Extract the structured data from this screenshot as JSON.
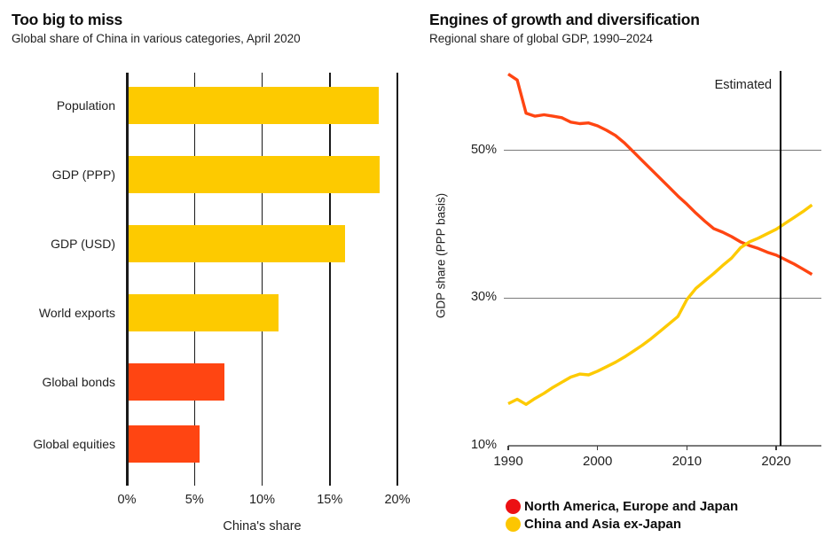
{
  "charts": {
    "left": {
      "title": "Too big to miss",
      "subtitle": "Global share of China in various categories, April 2020"
    },
    "right": {
      "title": "Engines of growth and diversification",
      "subtitle": "Regional share of global GDP, 1990–2024"
    }
  },
  "colors": {
    "bar_yellow": "#FDCA00",
    "bar_red": "#FF4512",
    "line_red": "#FF4512",
    "line_yellow": "#FDCA00",
    "legend_red": "#EC1013",
    "legend_yellow": "#FCC601",
    "grid_dark": "#1a1a1a",
    "grid_gray": "#7a7a7a",
    "annotation_black": "#000000"
  },
  "chart_data": [
    {
      "type": "bar",
      "orientation": "horizontal",
      "title": "Too big to miss",
      "subtitle": "Global share of China in various categories, April 2020",
      "categories": [
        "Population",
        "GDP (PPP)",
        "GDP (USD)",
        "World exports",
        "Global bonds",
        "Global equities"
      ],
      "values": [
        18.5,
        18.6,
        16.0,
        11.1,
        7.1,
        5.3
      ],
      "bar_colors": [
        "#FDCA00",
        "#FDCA00",
        "#FDCA00",
        "#FDCA00",
        "#FF4512",
        "#FF4512"
      ],
      "xlabel": "China's share",
      "ylabel": "",
      "x_ticks": [
        "0%",
        "5%",
        "10%",
        "15%",
        "20%"
      ],
      "x_tick_values": [
        0,
        5,
        10,
        15,
        20
      ],
      "xlim": [
        0,
        20
      ],
      "grid": "vertical-full-height-behind-bars"
    },
    {
      "type": "line",
      "title": "Engines of growth and diversification",
      "subtitle": "Regional share of global GDP, 1990–2024",
      "xlabel": "",
      "ylabel": "GDP share (PPP basis)",
      "x": [
        1990,
        1991,
        1992,
        1993,
        1994,
        1995,
        1996,
        1997,
        1998,
        1999,
        2000,
        2001,
        2002,
        2003,
        2004,
        2005,
        2006,
        2007,
        2008,
        2009,
        2010,
        2011,
        2012,
        2013,
        2014,
        2015,
        2016,
        2017,
        2018,
        2019,
        2020,
        2021,
        2022,
        2023,
        2024
      ],
      "series": [
        {
          "name": "North America, Europe and Japan",
          "color": "#FF4512",
          "legend_color": "#EC1013",
          "values": [
            60.3,
            59.5,
            55.0,
            54.6,
            54.8,
            54.6,
            54.4,
            53.8,
            53.6,
            53.7,
            53.3,
            52.7,
            52.0,
            51.0,
            49.8,
            48.6,
            47.4,
            46.2,
            45.0,
            43.8,
            42.7,
            41.5,
            40.4,
            39.4,
            38.9,
            38.3,
            37.6,
            37.1,
            36.7,
            36.2,
            35.8,
            35.2,
            34.6,
            33.9,
            33.2
          ]
        },
        {
          "name": "China and Asia ex-Japan",
          "color": "#FDCA00",
          "legend_color": "#FCC601",
          "values": [
            15.7,
            16.3,
            15.6,
            16.4,
            17.1,
            17.9,
            18.6,
            19.3,
            19.7,
            19.6,
            20.1,
            20.7,
            21.3,
            22.0,
            22.8,
            23.6,
            24.5,
            25.5,
            26.5,
            27.5,
            29.8,
            31.3,
            32.3,
            33.3,
            34.4,
            35.4,
            36.8,
            37.6,
            38.1,
            38.7,
            39.3,
            40.1,
            40.9,
            41.7,
            42.6
          ]
        }
      ],
      "y_ticks": [
        "10%",
        "30%",
        "50%"
      ],
      "y_tick_values": [
        10,
        30,
        50
      ],
      "y_grid_values": [
        30,
        50
      ],
      "x_ticks": [
        "1990",
        "2000",
        "2010",
        "2020"
      ],
      "x_tick_values": [
        1990,
        2000,
        2010,
        2020
      ],
      "ylim": [
        10,
        61
      ],
      "xlim": [
        1990,
        2025
      ],
      "annotation": {
        "label": "Estimated",
        "x": 2020.5
      },
      "legend_position": "bottom-left"
    }
  ]
}
